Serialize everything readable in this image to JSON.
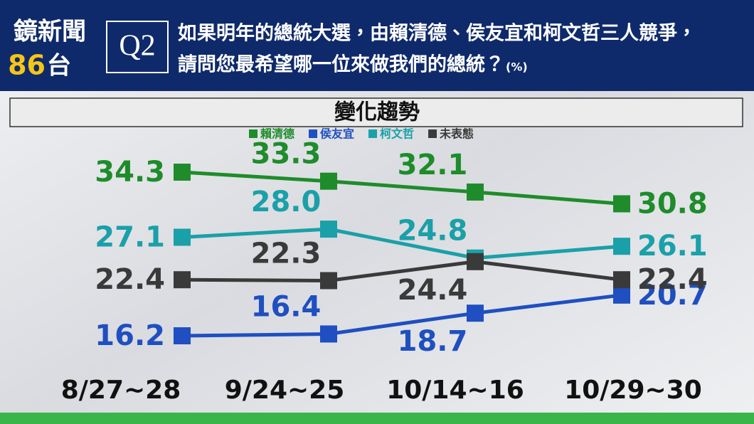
{
  "header": {
    "brand": "鏡新聞",
    "channel_number": "86",
    "channel_suffix": "台",
    "question_no": "Q2",
    "question_lines": [
      "如果明年的總統大選，由賴清德、侯友宜和柯文哲三人競爭，",
      "請問您最希望哪一位來做我們的總統？"
    ],
    "unit": "(%)"
  },
  "chart_data": {
    "type": "line",
    "title": "變化趨勢",
    "categories": [
      "8/27~28",
      "9/24~25",
      "10/14~16",
      "10/29~30"
    ],
    "series": [
      {
        "name": "賴清德",
        "color": "#1e8c2a",
        "values": [
          34.3,
          33.3,
          32.1,
          30.8
        ]
      },
      {
        "name": "侯友宜",
        "color": "#1f4fc0",
        "values": [
          16.2,
          16.4,
          18.7,
          20.7
        ]
      },
      {
        "name": "柯文哲",
        "color": "#1aa0a8",
        "values": [
          27.1,
          28.0,
          24.8,
          26.1
        ],
        "value_labels": [
          "27.1",
          "28.0",
          "24.8",
          "26.1"
        ]
      },
      {
        "name": "未表態",
        "color": "#3a3a3a",
        "values": [
          22.4,
          22.3,
          24.4,
          22.4
        ]
      }
    ]
  }
}
